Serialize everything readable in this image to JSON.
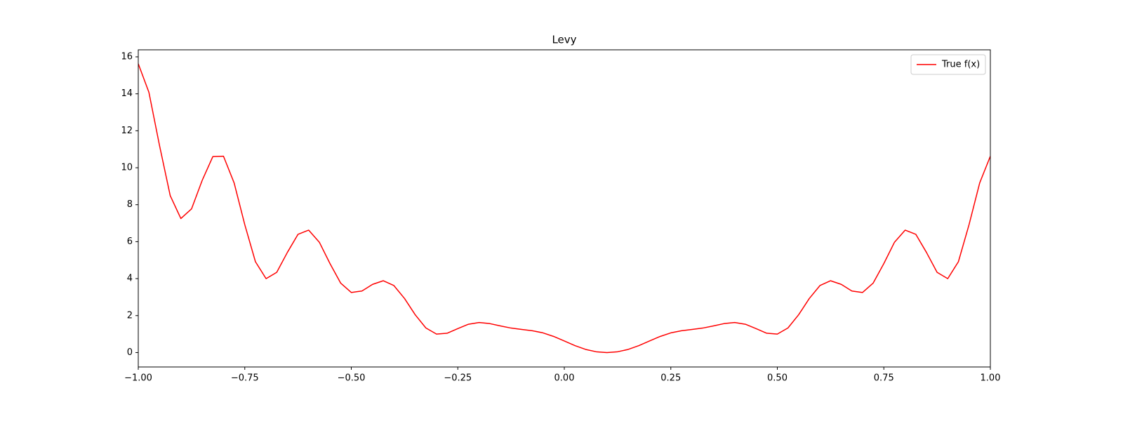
{
  "chart_data": {
    "type": "line",
    "title": "Levy",
    "x": [
      -1,
      -0.975,
      -0.95,
      -0.925,
      -0.9,
      -0.875,
      -0.85,
      -0.825,
      -0.8,
      -0.775,
      -0.75,
      -0.725,
      -0.7,
      -0.675,
      -0.65,
      -0.625,
      -0.6,
      -0.575,
      -0.55,
      -0.525,
      -0.5,
      -0.475,
      -0.45,
      -0.425,
      -0.4,
      -0.375,
      -0.35,
      -0.325,
      -0.3,
      -0.275,
      -0.25,
      -0.225,
      -0.2,
      -0.175,
      -0.15,
      -0.125,
      -0.1,
      -0.075,
      -0.05,
      -0.025,
      0,
      0.025,
      0.05,
      0.075,
      0.1,
      0.125,
      0.15,
      0.175,
      0.2,
      0.225,
      0.25,
      0.275,
      0.3,
      0.325,
      0.35,
      0.375,
      0.4,
      0.425,
      0.45,
      0.475,
      0.5,
      0.525,
      0.55,
      0.575,
      0.6,
      0.625,
      0.65,
      0.675,
      0.7,
      0.725,
      0.75,
      0.775,
      0.8,
      0.825,
      0.85,
      0.875,
      0.9,
      0.925,
      0.95,
      0.975,
      1
    ],
    "series": [
      {
        "name": "True f(x)",
        "color": "#ff0000",
        "values": [
          15.625,
          14.079,
          11.19,
          8.49,
          7.25,
          7.773,
          9.314,
          10.604,
          10.625,
          9.179,
          6.92,
          4.915,
          4,
          4.341,
          5.42,
          6.398,
          6.625,
          5.97,
          4.815,
          3.761,
          3.25,
          3.331,
          3.69,
          3.885,
          3.625,
          2.923,
          2.045,
          1.332,
          1,
          1.046,
          1.295,
          1.532,
          1.625,
          1.567,
          1.44,
          1.325,
          1.25,
          1.181,
          1.065,
          0.872,
          0.625,
          0.374,
          0.17,
          0.043,
          0,
          0.043,
          0.17,
          0.374,
          0.625,
          0.872,
          1.065,
          1.181,
          1.25,
          1.325,
          1.44,
          1.567,
          1.625,
          1.532,
          1.295,
          1.046,
          1,
          1.332,
          2.045,
          2.923,
          3.625,
          3.885,
          3.69,
          3.331,
          3.25,
          3.761,
          4.815,
          5.97,
          6.625,
          6.398,
          5.42,
          4.341,
          4,
          4.915,
          6.92,
          9.179,
          10.625
        ]
      }
    ],
    "xlim": [
      -1,
      1
    ],
    "ylim": [
      -0.78,
      16.38
    ],
    "xticks": [
      {
        "value": -1,
        "label": "−1.00"
      },
      {
        "value": -0.75,
        "label": "−0.75"
      },
      {
        "value": -0.5,
        "label": "−0.50"
      },
      {
        "value": -0.25,
        "label": "−0.25"
      },
      {
        "value": 0,
        "label": "0.00"
      },
      {
        "value": 0.25,
        "label": "0.25"
      },
      {
        "value": 0.5,
        "label": "0.50"
      },
      {
        "value": 0.75,
        "label": "0.75"
      },
      {
        "value": 1,
        "label": "1.00"
      }
    ],
    "yticks": [
      0,
      2,
      4,
      6,
      8,
      10,
      12,
      14,
      16
    ],
    "grid": false,
    "legend": "upper right"
  }
}
